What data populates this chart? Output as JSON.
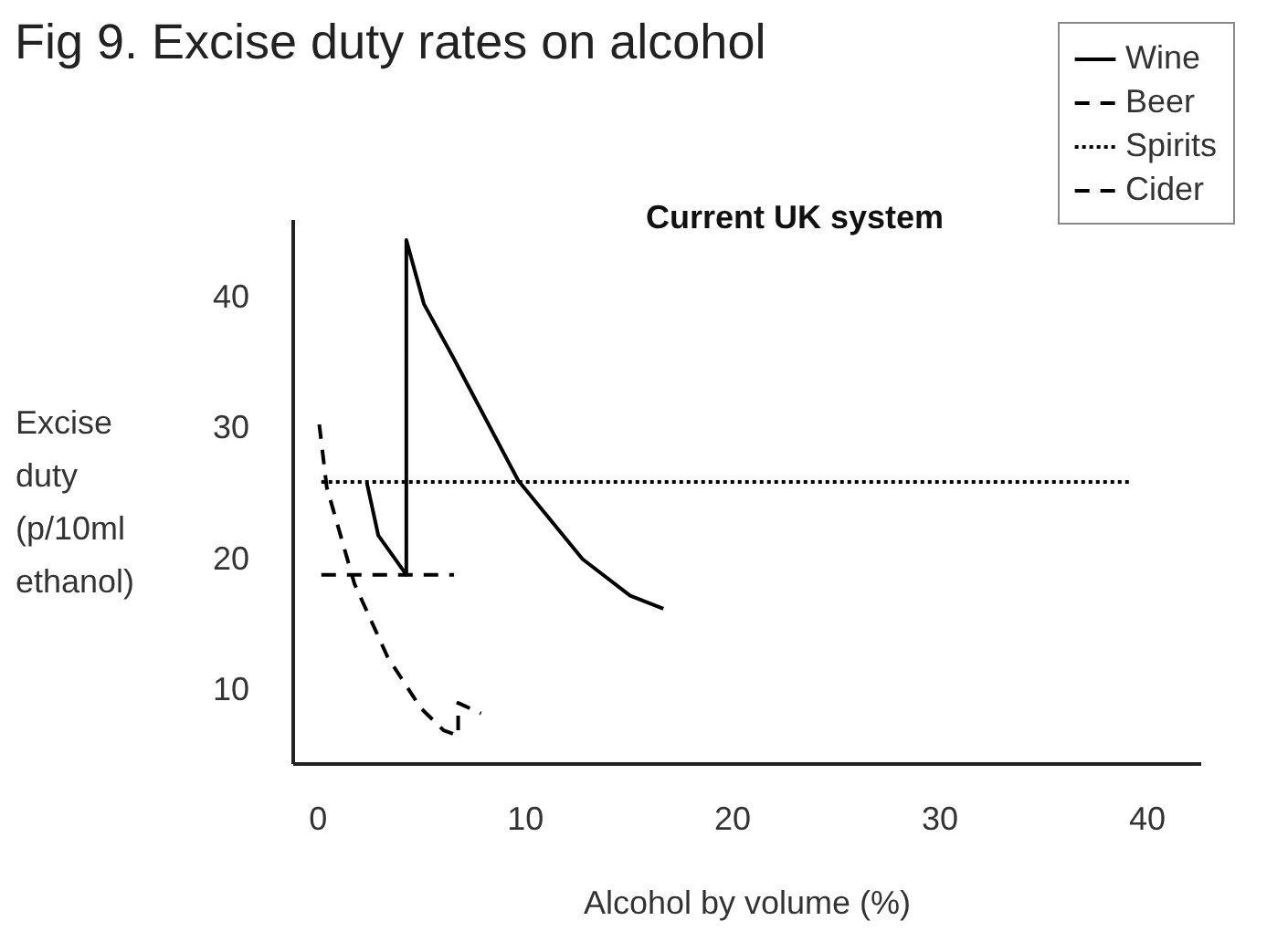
{
  "chart_data": {
    "type": "line",
    "title": "Fig 9. Excise duty rates on alcohol",
    "xlabel": "Alcohol by volume (%)",
    "ylabel": "Excise duty (p/10ml ethanol)",
    "annotations": [
      "Current UK system"
    ],
    "xlim": [
      -1.2,
      42.6
    ],
    "xticks": [
      0,
      10,
      20,
      30,
      40
    ],
    "ylim": [
      4.4,
      46
    ],
    "yticks": [
      10,
      20,
      30,
      40
    ],
    "legend": "top right",
    "series": [
      {
        "name": "Wine",
        "color": "#000000",
        "line_style": "solid",
        "x": [
          2.4,
          2.95,
          4.3,
          4.3,
          5.15,
          6.6,
          9.7,
          12.8,
          15.1,
          16.7
        ],
        "values": [
          25.8,
          21.8,
          18.8,
          44.4,
          39.5,
          35.3,
          26.0,
          20.0,
          17.2,
          16.2
        ]
      },
      {
        "name": "Beer",
        "color": "#000000",
        "line_style": "dashed",
        "x": [
          0.2,
          6.6
        ],
        "values": [
          18.8,
          18.8
        ]
      },
      {
        "name": "Spirits",
        "color": "#000000",
        "line_style": "dotted",
        "x": [
          0.2,
          39.3
        ],
        "values": [
          25.9,
          25.9
        ]
      },
      {
        "name": "Cider",
        "color": "#000000",
        "line_style": "dashed",
        "x": [
          0.1,
          0.46,
          1.8,
          3.4,
          5.0,
          6.1,
          6.8,
          6.8,
          7.9
        ],
        "values": [
          30.3,
          25.5,
          18.1,
          12.5,
          8.6,
          6.9,
          6.5,
          9.0,
          8.2
        ]
      }
    ]
  }
}
